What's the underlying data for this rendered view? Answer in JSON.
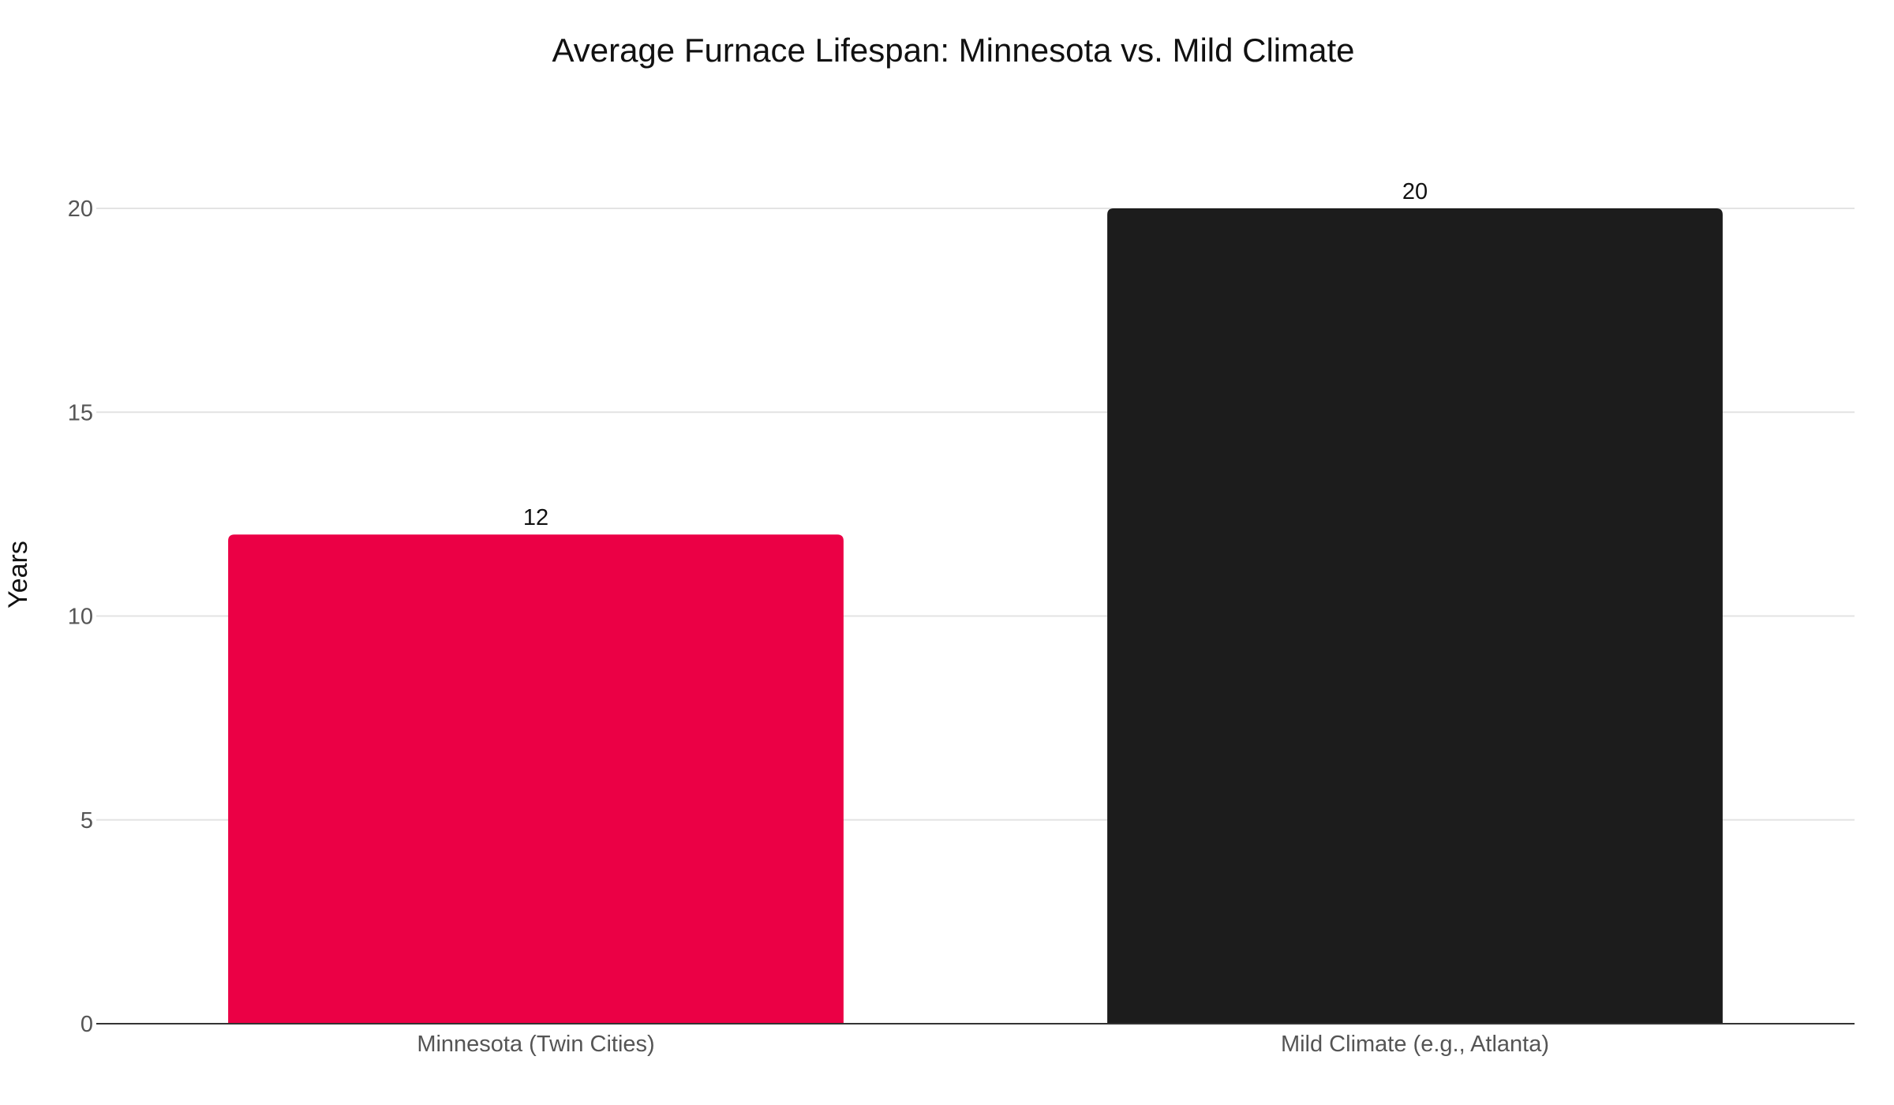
{
  "chart_data": {
    "type": "bar",
    "title": "Average Furnace Lifespan: Minnesota vs. Mild Climate",
    "xlabel": "",
    "ylabel": "Years",
    "categories": [
      "Minnesota (Twin Cities)",
      "Mild Climate (e.g., Atlanta)"
    ],
    "values": [
      12,
      20
    ],
    "bar_colors": [
      "#eb0045",
      "#1c1c1c"
    ],
    "ylim": [
      0,
      20
    ],
    "y_ticks": [
      0,
      5,
      10,
      15,
      20
    ],
    "grid": true,
    "data_labels": true
  }
}
